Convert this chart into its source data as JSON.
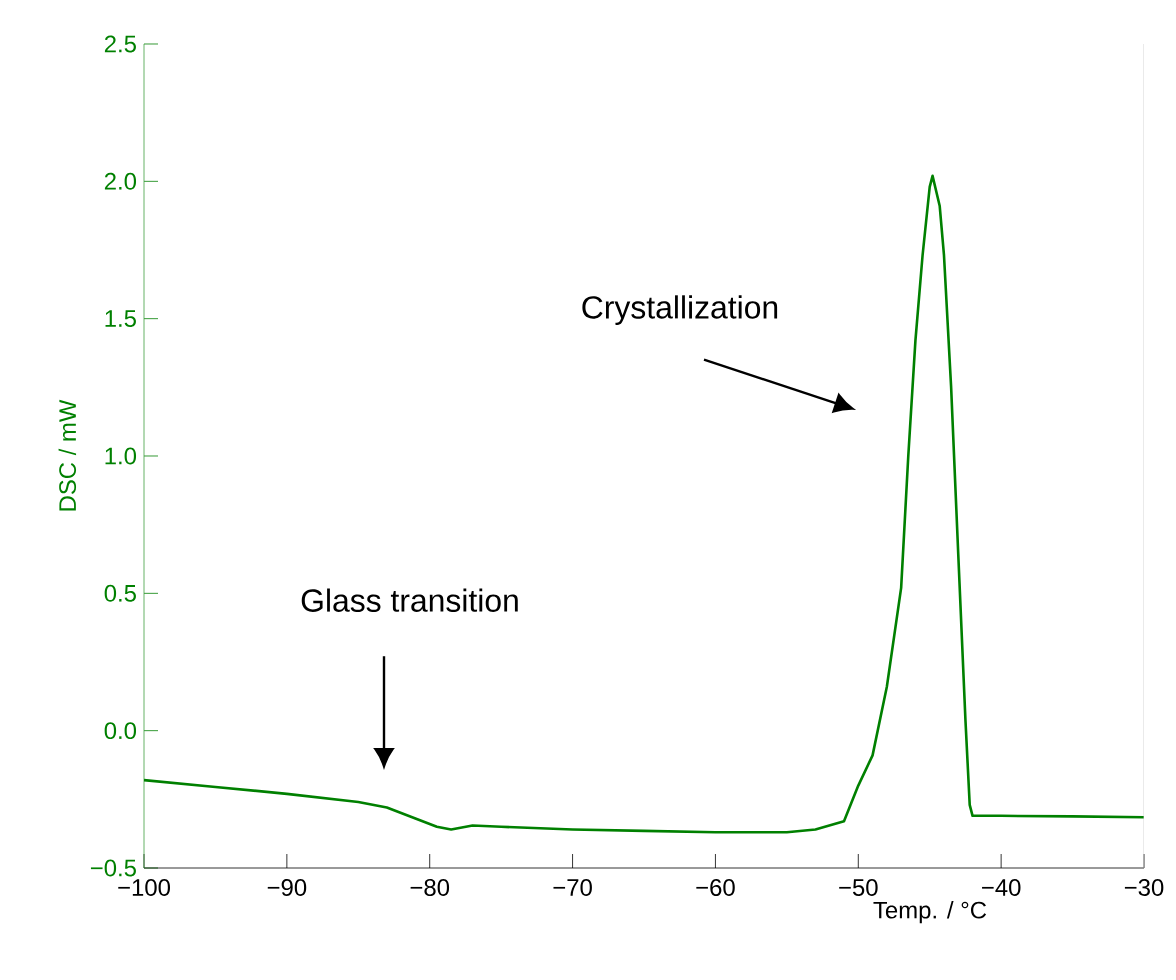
{
  "chart_data": {
    "type": "line",
    "xlabel": "Temp. / °C",
    "ylabel": "DSC / mW",
    "xlim": [
      -100,
      -30
    ],
    "ylim": [
      -0.5,
      2.5
    ],
    "xticks": [
      {
        "value": -100,
        "label": "−100"
      },
      {
        "value": -90,
        "label": "−90"
      },
      {
        "value": -80,
        "label": "−80"
      },
      {
        "value": -70,
        "label": "−70"
      },
      {
        "value": -60,
        "label": "−60"
      },
      {
        "value": -50,
        "label": "−50"
      },
      {
        "value": -40,
        "label": "−40"
      },
      {
        "value": -30,
        "label": "−30"
      }
    ],
    "yticks": [
      {
        "value": -0.5,
        "label": "−0.5"
      },
      {
        "value": 0,
        "label": "0.0"
      },
      {
        "value": 0.5,
        "label": "0.5"
      },
      {
        "value": 1,
        "label": "1.0"
      },
      {
        "value": 1.5,
        "label": "1.5"
      },
      {
        "value": 2,
        "label": "2.0"
      },
      {
        "value": 2.5,
        "label": "2.5"
      }
    ],
    "grid": false,
    "marker": "none",
    "line_style": "solid",
    "series": [
      {
        "color": "#008000",
        "x": [
          -100,
          -95,
          -90,
          -85,
          -83,
          -81,
          -79.5,
          -78.5,
          -77,
          -75,
          -70,
          -65,
          -60,
          -55,
          -53,
          -51,
          -50,
          -49,
          -48,
          -47,
          -46.5,
          -46,
          -45.5,
          -45,
          -44.8,
          -44.3,
          -44,
          -43.5,
          -43,
          -42.5,
          -42.2,
          -42,
          -40,
          -35,
          -30
        ],
        "values": [
          -0.18,
          -0.205,
          -0.23,
          -0.26,
          -0.28,
          -0.32,
          -0.35,
          -0.36,
          -0.345,
          -0.35,
          -0.36,
          -0.365,
          -0.37,
          -0.37,
          -0.36,
          -0.33,
          -0.2,
          -0.09,
          0.16,
          0.52,
          1.0,
          1.42,
          1.73,
          1.98,
          2.02,
          1.91,
          1.73,
          1.25,
          0.64,
          0.04,
          -0.27,
          -0.31,
          -0.31,
          -0.312,
          -0.315
        ]
      }
    ],
    "annotations": [
      "Glass transition",
      "Crystallization"
    ]
  }
}
